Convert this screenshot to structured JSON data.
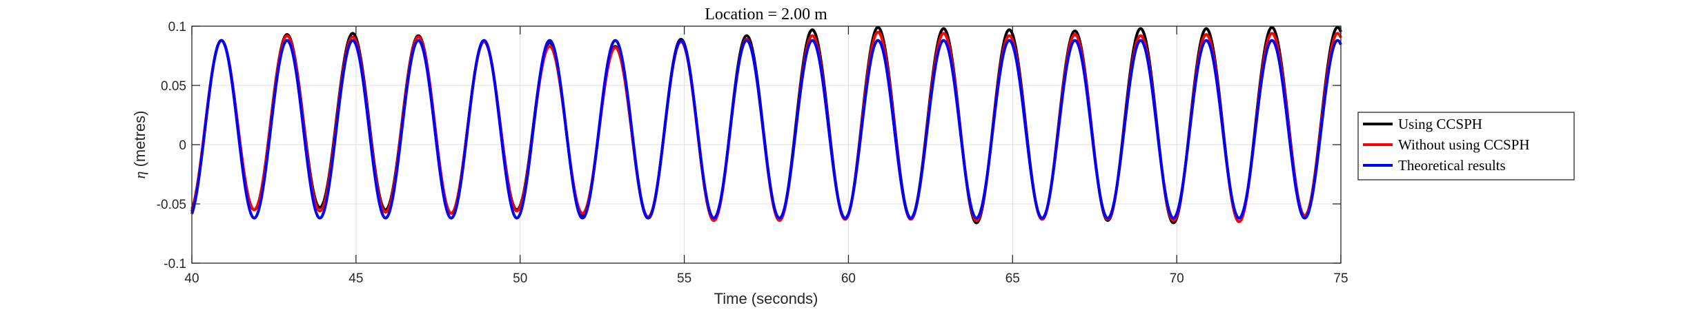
{
  "chart_data": {
    "type": "line",
    "title": "Location = 2.00 m",
    "xlabel": "Time (seconds)",
    "ylabel_symbol": "η",
    "ylabel_rest": " (metres)",
    "xlim": [
      40,
      75
    ],
    "ylim": [
      -0.1,
      0.1
    ],
    "xticks": [
      40,
      45,
      50,
      55,
      60,
      65,
      70,
      75
    ],
    "xtick_labels": [
      "40",
      "45",
      "50",
      "55",
      "60",
      "65",
      "70",
      "75"
    ],
    "yticks": [
      -0.1,
      -0.05,
      0,
      0.05,
      0.1
    ],
    "ytick_labels": [
      "-0.1",
      "-0.05",
      "0",
      "0.05",
      "0.1"
    ],
    "grid": true,
    "legend_position": "right-outside",
    "period": 2.0,
    "phase_t0": 40.9,
    "series": [
      {
        "name": "Using CCSPH",
        "color": "#000000",
        "peaks": [
          0.088,
          0.093,
          0.094,
          0.092,
          0.087,
          0.086,
          0.083,
          0.089,
          0.092,
          0.097,
          0.099,
          0.098,
          0.097,
          0.096,
          0.098,
          0.098,
          0.099,
          0.099
        ],
        "troughs": [
          -0.06,
          -0.055,
          -0.053,
          -0.055,
          -0.058,
          -0.055,
          -0.06,
          -0.062,
          -0.064,
          -0.063,
          -0.063,
          -0.062,
          -0.066,
          -0.063,
          -0.064,
          -0.066,
          -0.065,
          -0.06
        ]
      },
      {
        "name": "Without using CCSPH",
        "color": "#ff0000",
        "peaks": [
          0.088,
          0.092,
          0.091,
          0.091,
          0.087,
          0.083,
          0.082,
          0.087,
          0.089,
          0.092,
          0.095,
          0.094,
          0.092,
          0.093,
          0.092,
          0.093,
          0.094,
          0.094
        ],
        "troughs": [
          -0.058,
          -0.055,
          -0.056,
          -0.057,
          -0.058,
          -0.056,
          -0.058,
          -0.061,
          -0.064,
          -0.064,
          -0.063,
          -0.063,
          -0.064,
          -0.063,
          -0.063,
          -0.064,
          -0.065,
          -0.06
        ]
      },
      {
        "name": "Theoretical results",
        "color": "#0000ff",
        "peaks": [
          0.088,
          0.088,
          0.088,
          0.088,
          0.088,
          0.088,
          0.088,
          0.088,
          0.088,
          0.088,
          0.088,
          0.088,
          0.088,
          0.088,
          0.088,
          0.088,
          0.088,
          0.088
        ],
        "troughs": [
          -0.062,
          -0.062,
          -0.062,
          -0.062,
          -0.062,
          -0.062,
          -0.062,
          -0.062,
          -0.062,
          -0.062,
          -0.062,
          -0.062,
          -0.062,
          -0.062,
          -0.062,
          -0.062,
          -0.062,
          -0.062
        ]
      }
    ]
  }
}
